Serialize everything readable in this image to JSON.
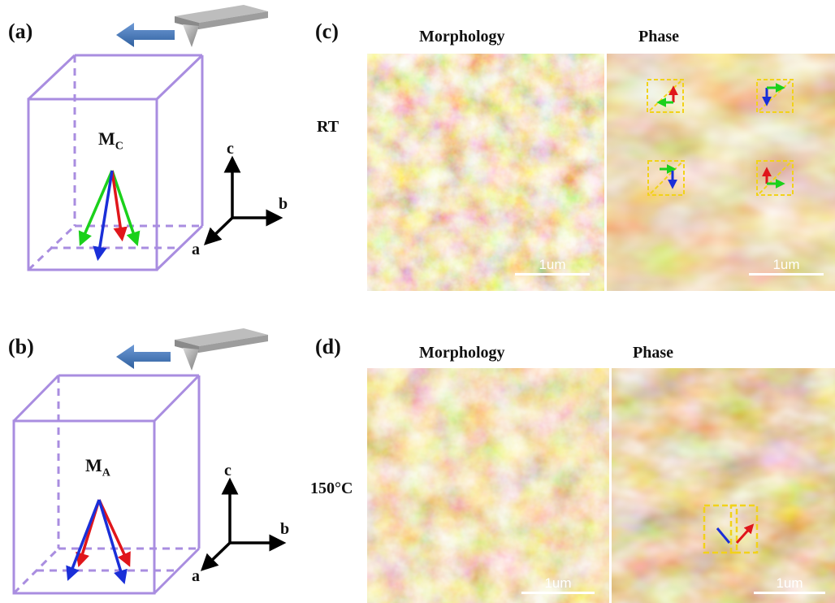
{
  "panels": {
    "a": {
      "letter": "(a)",
      "phase_label": "M",
      "phase_sub": "C",
      "axes": {
        "c": "c",
        "b": "b",
        "a": "a"
      }
    },
    "b": {
      "letter": "(b)",
      "phase_label": "M",
      "phase_sub": "A",
      "axes": {
        "c": "c",
        "b": "b",
        "a": "a"
      }
    },
    "c": {
      "letter": "(c)",
      "temperature": "RT",
      "morph_title": "Morphology",
      "phase_title": "Phase",
      "scale_morph": "1um",
      "scale_phase": "1um"
    },
    "d": {
      "letter": "(d)",
      "temperature": "150°C",
      "morph_title": "Morphology",
      "phase_title": "Phase",
      "scale_morph": "1um",
      "scale_phase": "1um"
    }
  },
  "colors": {
    "box": "#a98de0",
    "arrow_red": "#e0161b",
    "arrow_green": "#1bd11b",
    "arrow_blue": "#1a2fd8",
    "scan_arrow": "#3d73b5",
    "dashed_box": "#f1d21a"
  },
  "icons": [
    "afm-tip-cantilever-icon",
    "scan-direction-arrow-icon"
  ]
}
